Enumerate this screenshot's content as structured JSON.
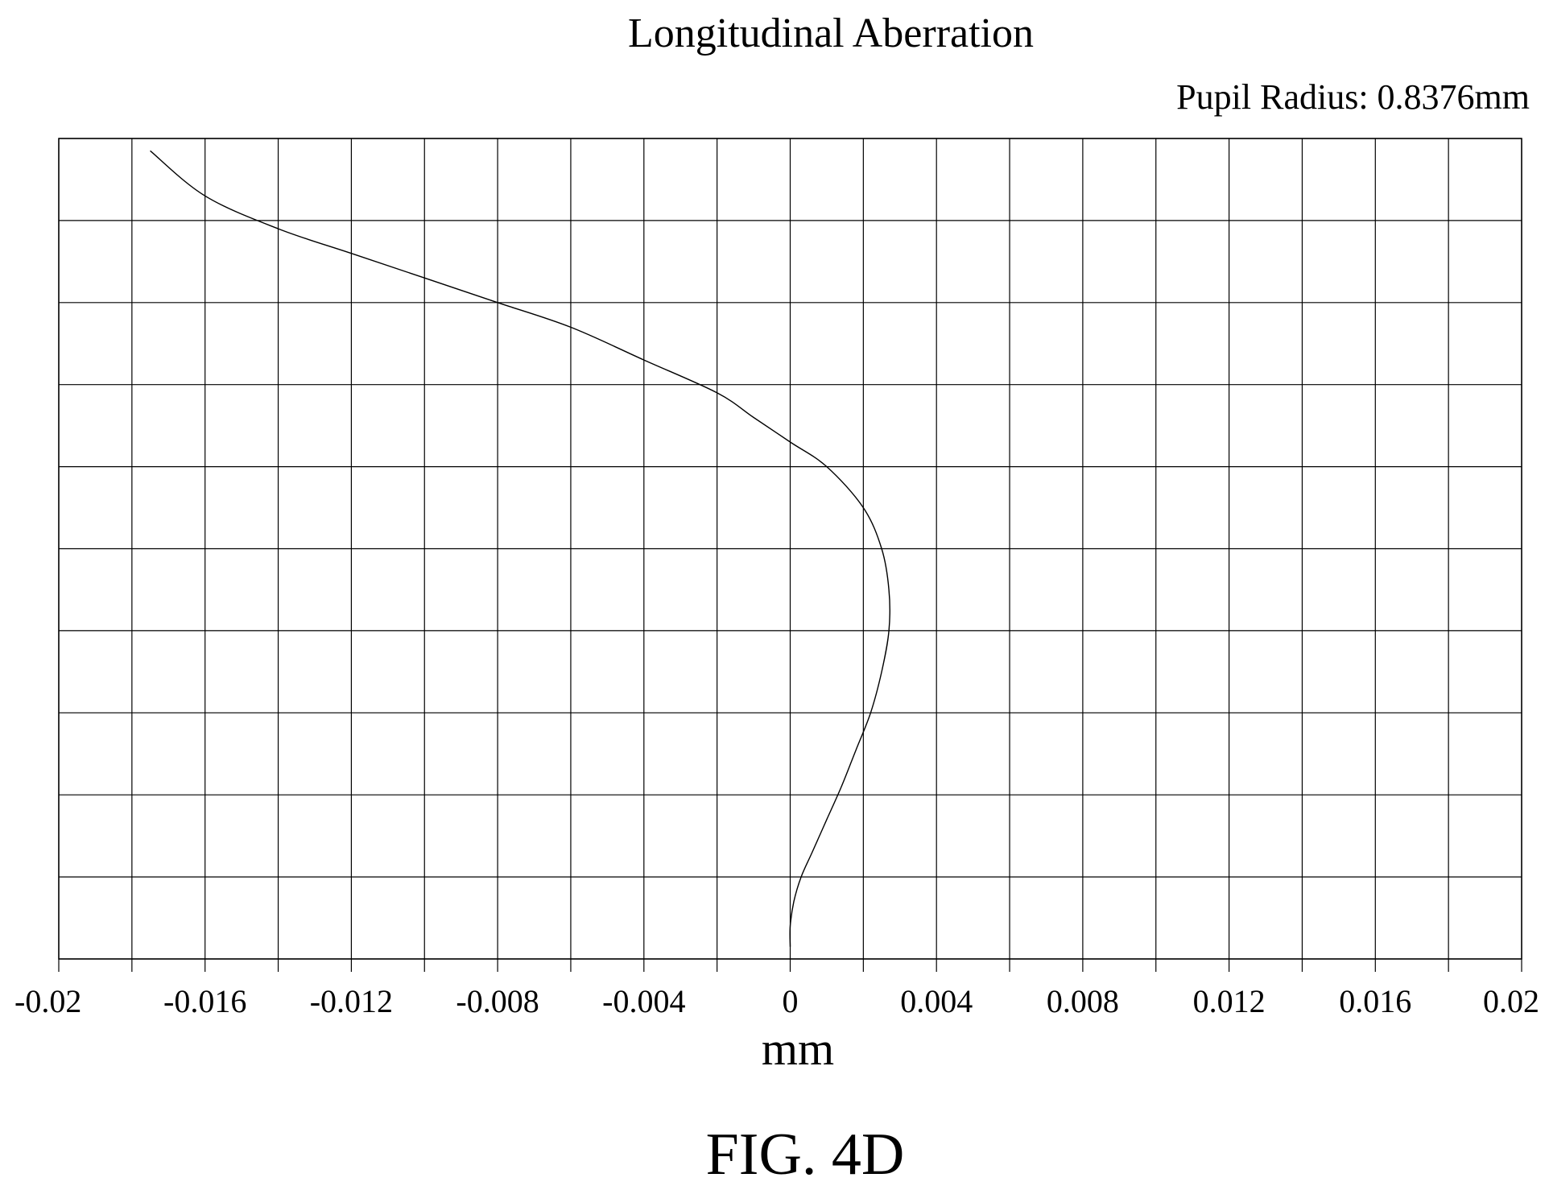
{
  "chart_data": {
    "type": "line",
    "title": "Longitudinal Aberration",
    "subtitle": "Pupil Radius: 0.8376mm",
    "xlabel": "mm",
    "ylabel": "",
    "figure_label": "FIG. 4D",
    "xlim": [
      -0.02,
      0.02
    ],
    "ylim": [
      0,
      1
    ],
    "grid": true,
    "x_ticks": [
      -0.02,
      -0.018,
      -0.016,
      -0.014,
      -0.012,
      -0.01,
      -0.008,
      -0.006,
      -0.004,
      -0.002,
      0,
      0.002,
      0.004,
      0.006,
      0.008,
      0.01,
      0.012,
      0.014,
      0.016,
      0.018,
      0.02
    ],
    "x_tick_labels": [
      {
        "value": -0.02,
        "label": "-0.02"
      },
      {
        "value": -0.016,
        "label": "-0.016"
      },
      {
        "value": -0.012,
        "label": "-0.012"
      },
      {
        "value": -0.008,
        "label": "-0.008"
      },
      {
        "value": -0.004,
        "label": "-0.004"
      },
      {
        "value": 0,
        "label": "0"
      },
      {
        "value": 0.004,
        "label": "0.004"
      },
      {
        "value": 0.008,
        "label": "0.008"
      },
      {
        "value": 0.012,
        "label": "0.012"
      },
      {
        "value": 0.016,
        "label": "0.016"
      },
      {
        "value": 0.02,
        "label": "0.02"
      }
    ],
    "y_ticks": [
      0,
      0.1,
      0.2,
      0.3,
      0.4,
      0.5,
      0.6,
      0.7,
      0.8,
      0.9,
      1.0
    ],
    "series": [
      {
        "color": "#000000",
        "points": [
          {
            "x": 0.0,
            "y": 0.015
          },
          {
            "x": 0.0,
            "y": 0.04
          },
          {
            "x": 0.0001,
            "y": 0.07
          },
          {
            "x": 0.0003,
            "y": 0.1
          },
          {
            "x": 0.0006,
            "y": 0.13
          },
          {
            "x": 0.001,
            "y": 0.17
          },
          {
            "x": 0.0014,
            "y": 0.21
          },
          {
            "x": 0.0018,
            "y": 0.255
          },
          {
            "x": 0.0022,
            "y": 0.3
          },
          {
            "x": 0.0025,
            "y": 0.35
          },
          {
            "x": 0.0027,
            "y": 0.4
          },
          {
            "x": 0.0027,
            "y": 0.45
          },
          {
            "x": 0.0025,
            "y": 0.5
          },
          {
            "x": 0.002,
            "y": 0.55
          },
          {
            "x": 0.001,
            "y": 0.6
          },
          {
            "x": 0.0,
            "y": 0.63
          },
          {
            "x": -0.001,
            "y": 0.66
          },
          {
            "x": -0.002,
            "y": 0.69
          },
          {
            "x": -0.004,
            "y": 0.73
          },
          {
            "x": -0.006,
            "y": 0.77
          },
          {
            "x": -0.008,
            "y": 0.8
          },
          {
            "x": -0.01,
            "y": 0.83
          },
          {
            "x": -0.012,
            "y": 0.86
          },
          {
            "x": -0.014,
            "y": 0.89
          },
          {
            "x": -0.016,
            "y": 0.93
          },
          {
            "x": -0.0175,
            "y": 0.985
          }
        ]
      }
    ]
  }
}
